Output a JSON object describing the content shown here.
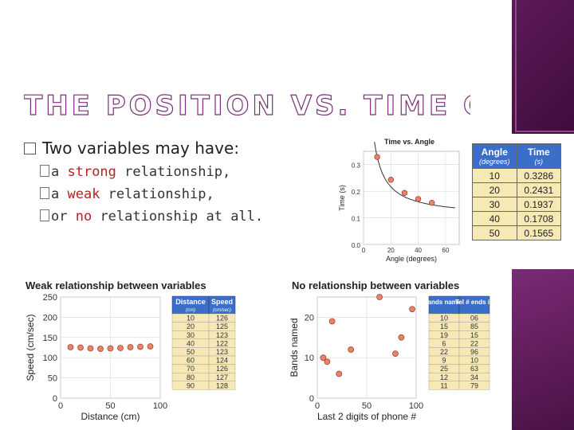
{
  "slide": {
    "title": "THE POSITION VS. TIME GRAPH",
    "bullet_main": "Two variables may have:",
    "sub1": {
      "prefix": "a ",
      "hl": "strong",
      "suffix": " relationship,"
    },
    "sub2": {
      "prefix": "a ",
      "hl": "weak",
      "suffix": " relationship,"
    },
    "sub3": {
      "prefix": "or ",
      "hl": "no",
      "suffix": " relationship at all."
    },
    "colors": {
      "accent": "#7d2e78",
      "highlight": "#b02424",
      "point": "#e8826a",
      "table_header": "#3a6ec9",
      "table_body": "#f6e9b6"
    }
  },
  "angle_table": {
    "headers": [
      "Angle",
      "Time"
    ],
    "units": [
      "(degrees)",
      "(s)"
    ],
    "rows": [
      [
        "10",
        "0.3286"
      ],
      [
        "20",
        "0.2431"
      ],
      [
        "30",
        "0.1937"
      ],
      [
        "40",
        "0.1708"
      ],
      [
        "50",
        "0.1565"
      ]
    ]
  },
  "weak_table": {
    "headers": [
      "Distance",
      "Speed"
    ],
    "units": [
      "(cm)",
      "(cm/sec)"
    ],
    "rows": [
      [
        "10",
        "126"
      ],
      [
        "20",
        "125"
      ],
      [
        "30",
        "123"
      ],
      [
        "40",
        "122"
      ],
      [
        "50",
        "123"
      ],
      [
        "60",
        "124"
      ],
      [
        "70",
        "126"
      ],
      [
        "80",
        "127"
      ],
      [
        "90",
        "128"
      ]
    ]
  },
  "none_table": {
    "headers": [
      "Bands named",
      "Tel # ends in"
    ],
    "rows": [
      [
        "10",
        "06"
      ],
      [
        "15",
        "85"
      ],
      [
        "19",
        "15"
      ],
      [
        "6",
        "22"
      ],
      [
        "22",
        "96"
      ],
      [
        "9",
        "10"
      ],
      [
        "25",
        "63"
      ],
      [
        "12",
        "34"
      ],
      [
        "11",
        "79"
      ]
    ]
  },
  "chart_data": [
    {
      "type": "scatter",
      "title": "Time vs. Angle",
      "xlabel": "Angle (degrees)",
      "ylabel": "Time (s)",
      "xlim": [
        0,
        70
      ],
      "ylim": [
        0,
        0.35
      ],
      "xticks": [
        "0",
        "20",
        "40",
        "60"
      ],
      "yticks": [
        "0.0",
        "0.1",
        "0.2",
        "0.3"
      ],
      "x": [
        10,
        20,
        30,
        40,
        50
      ],
      "y": [
        0.3286,
        0.2431,
        0.1937,
        0.1708,
        0.1565
      ],
      "curve": true,
      "grid": true
    },
    {
      "type": "scatter",
      "title": "Weak relationship between variables",
      "xlabel": "Distance (cm)",
      "ylabel": "Speed (cm/sec)",
      "xlim": [
        0,
        100
      ],
      "ylim": [
        0,
        250
      ],
      "xticks": [
        "0",
        "50",
        "100"
      ],
      "yticks": [
        "0",
        "50",
        "100",
        "150",
        "200",
        "250"
      ],
      "x": [
        10,
        20,
        30,
        40,
        50,
        60,
        70,
        80,
        90
      ],
      "y": [
        126,
        125,
        123,
        122,
        123,
        124,
        126,
        127,
        128
      ],
      "grid": true
    },
    {
      "type": "scatter",
      "title": "No relationship between variables",
      "xlabel": "Last 2 digits of phone #",
      "ylabel": "Bands named",
      "xlim": [
        0,
        100
      ],
      "ylim": [
        0,
        25
      ],
      "xticks": [
        "0",
        "50",
        "100"
      ],
      "yticks": [
        "0",
        "10",
        "20"
      ],
      "x": [
        6,
        85,
        15,
        22,
        96,
        10,
        63,
        34,
        79
      ],
      "y": [
        10,
        15,
        19,
        6,
        22,
        9,
        25,
        12,
        11
      ],
      "grid": true
    }
  ]
}
